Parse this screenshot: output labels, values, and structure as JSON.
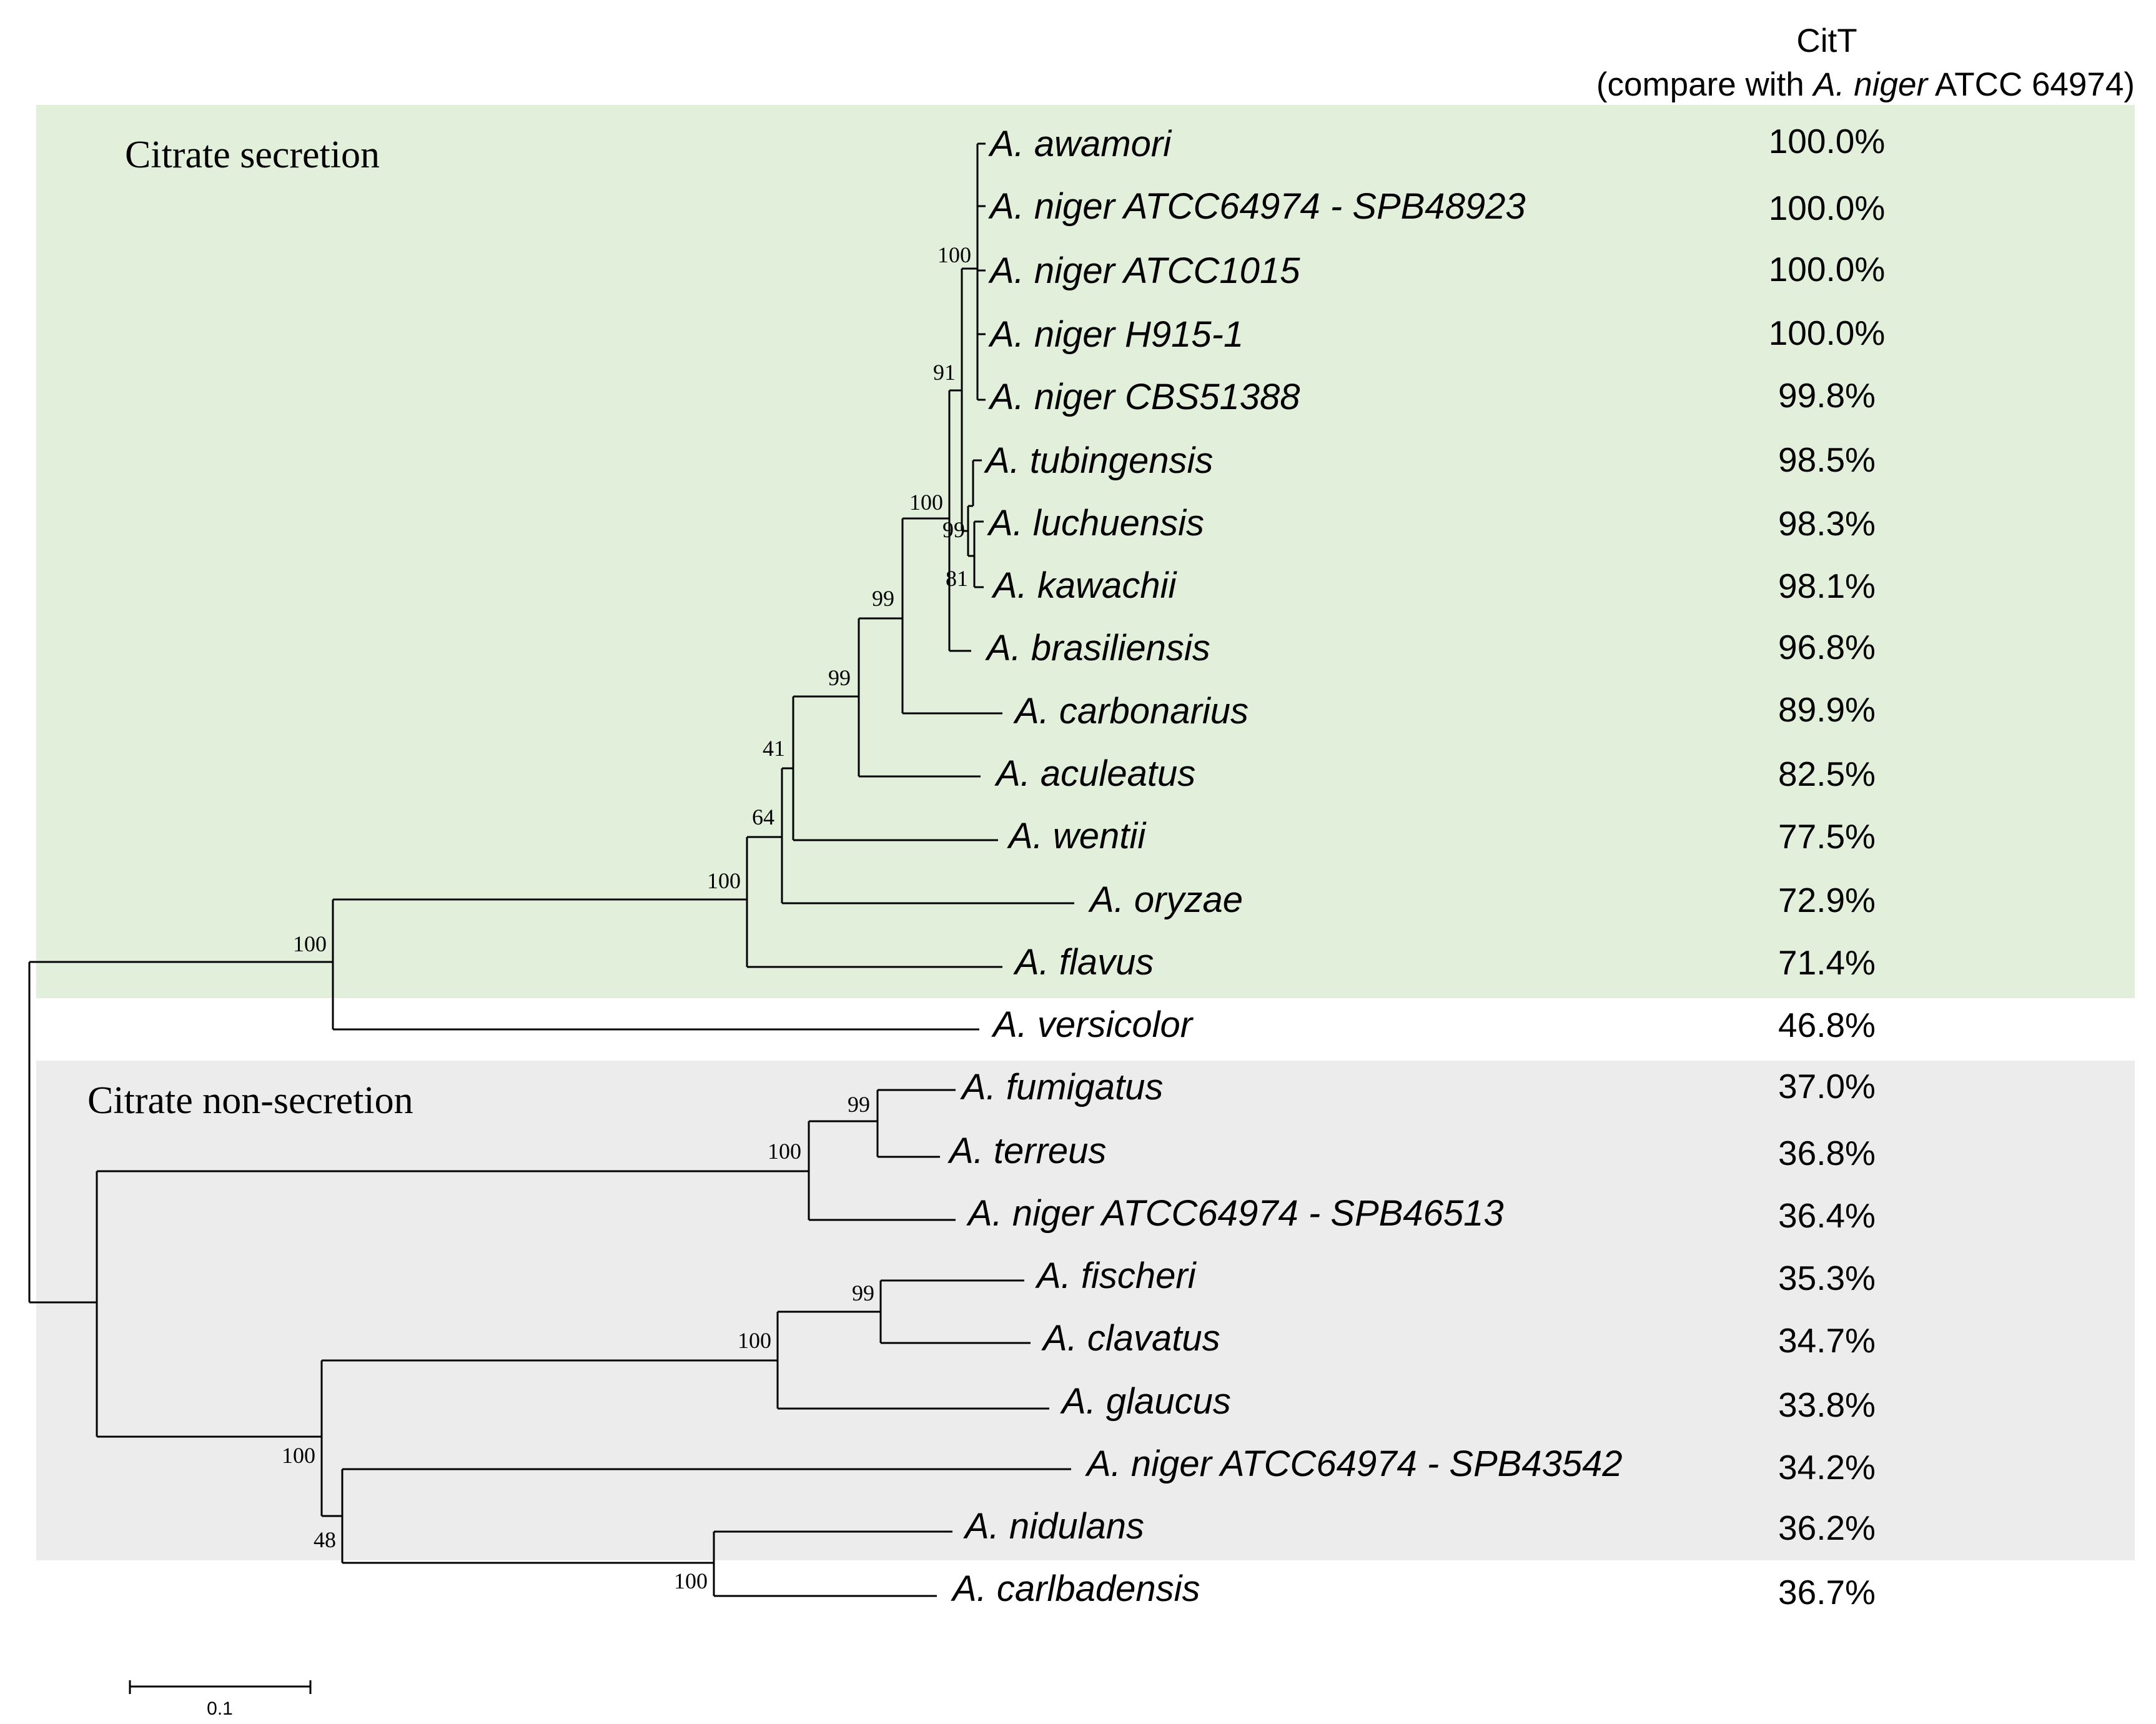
{
  "header": {
    "title": "CitT",
    "subtitle_prefix": "(compare with ",
    "subtitle_species": "A. niger",
    "subtitle_suffix": " ATCC 64974)"
  },
  "regions": {
    "secretion": {
      "label": "Citrate secretion",
      "color": "#e2efda"
    },
    "non_secretion": {
      "label": "Citrate non-secretion",
      "color": "#ececec"
    }
  },
  "taxa": [
    {
      "name": "A. awamori",
      "identity": "100.0%"
    },
    {
      "name": "A. niger ATCC64974 - SPB48923",
      "identity": "100.0%"
    },
    {
      "name": "A. niger ATCC1015",
      "identity": "100.0%"
    },
    {
      "name": "A. niger H915-1",
      "identity": "100.0%"
    },
    {
      "name": "A. niger CBS51388",
      "identity": "99.8%"
    },
    {
      "name": "A. tubingensis",
      "identity": "98.5%"
    },
    {
      "name": "A. luchuensis",
      "identity": "98.3%"
    },
    {
      "name": "A. kawachii",
      "identity": "98.1%"
    },
    {
      "name": "A. brasiliensis",
      "identity": "96.8%"
    },
    {
      "name": "A. carbonarius",
      "identity": "89.9%"
    },
    {
      "name": "A. aculeatus",
      "identity": "82.5%"
    },
    {
      "name": "A. wentii",
      "identity": "77.5%"
    },
    {
      "name": "A. oryzae",
      "identity": "72.9%"
    },
    {
      "name": "A. flavus",
      "identity": "71.4%"
    },
    {
      "name": "A. versicolor",
      "identity": "46.8%"
    },
    {
      "name": "A. fumigatus",
      "identity": "37.0%"
    },
    {
      "name": "A. terreus",
      "identity": "36.8%"
    },
    {
      "name": "A. niger ATCC64974 - SPB46513",
      "identity": "36.4%"
    },
    {
      "name": "A. fischeri",
      "identity": "35.3%"
    },
    {
      "name": "A. clavatus",
      "identity": "34.7%"
    },
    {
      "name": "A. glaucus",
      "identity": "33.8%"
    },
    {
      "name": "A. niger ATCC64974 - SPB43542",
      "identity": "34.2%"
    },
    {
      "name": "A. nidulans",
      "identity": "36.2%"
    },
    {
      "name": "A. carlbadensis",
      "identity": "36.7%"
    }
  ],
  "bootstrap": [
    "100",
    "91",
    "100",
    "99",
    "81",
    "99",
    "99",
    "41",
    "64",
    "100",
    "100",
    "99",
    "100",
    "99",
    "100",
    "100",
    "48",
    "100"
  ],
  "scale_bar": {
    "label": "0.1",
    "length_units": 0.1
  }
}
